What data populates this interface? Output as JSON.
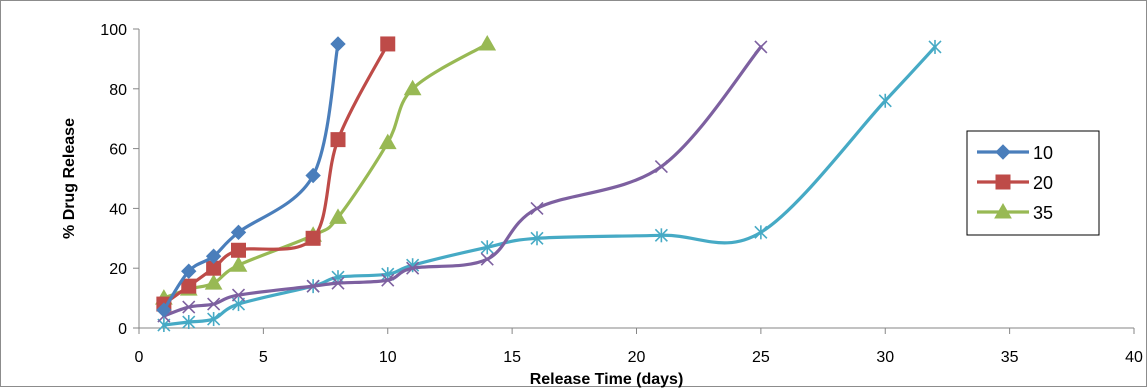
{
  "chart_data": {
    "type": "line",
    "xlabel": "Release Time (days)",
    "ylabel": "% Drug Release",
    "xlim": [
      0,
      40
    ],
    "ylim": [
      0,
      100
    ],
    "x_ticks": [
      "0",
      "5",
      "10",
      "15",
      "20",
      "25",
      "30",
      "35",
      "40"
    ],
    "y_ticks": [
      "0",
      "20",
      "40",
      "60",
      "80",
      "100"
    ],
    "grid": false,
    "legend_position": "right",
    "smooth": true,
    "series": [
      {
        "name": "10",
        "color": "#4a7ebb",
        "marker": "diamond",
        "x": [
          1,
          2,
          3,
          4,
          7,
          8
        ],
        "y": [
          6,
          19,
          24,
          32,
          51,
          95
        ]
      },
      {
        "name": "20",
        "color": "#be4b48",
        "marker": "square",
        "x": [
          1,
          2,
          3,
          4,
          7,
          8,
          10
        ],
        "y": [
          8,
          14,
          20,
          26,
          30,
          63,
          95
        ]
      },
      {
        "name": "35",
        "color": "#98b954",
        "marker": "triangle",
        "x": [
          1,
          2,
          3,
          4,
          7,
          8,
          10,
          11,
          14
        ],
        "y": [
          10,
          13,
          15,
          21,
          31,
          37,
          62,
          80,
          95
        ]
      },
      {
        "color": "#7d60a0",
        "marker": "x",
        "x": [
          1,
          2,
          3,
          4,
          7,
          8,
          10,
          11,
          14,
          16,
          21,
          25
        ],
        "y": [
          4,
          7,
          8,
          11,
          14,
          15,
          16,
          20,
          23,
          40,
          54,
          94
        ]
      },
      {
        "color": "#46aac5",
        "marker": "star",
        "x": [
          1,
          2,
          3,
          4,
          7,
          8,
          10,
          11,
          14,
          16,
          21,
          25,
          30,
          32
        ],
        "y": [
          1,
          2,
          3,
          8,
          14,
          17,
          18,
          21,
          27,
          30,
          31,
          32,
          76,
          94
        ]
      }
    ]
  }
}
